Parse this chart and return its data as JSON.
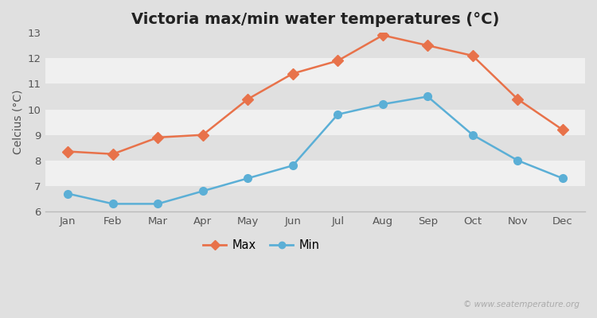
{
  "title": "Victoria max/min water temperatures (°C)",
  "xlabel": "",
  "ylabel": "Celcius (°C)",
  "months": [
    "Jan",
    "Feb",
    "Mar",
    "Apr",
    "May",
    "Jun",
    "Jul",
    "Aug",
    "Sep",
    "Oct",
    "Nov",
    "Dec"
  ],
  "max_temps": [
    8.35,
    8.25,
    8.9,
    9.0,
    10.4,
    11.4,
    11.9,
    12.9,
    12.5,
    12.1,
    10.4,
    9.2
  ],
  "min_temps": [
    6.7,
    6.3,
    6.3,
    6.8,
    7.3,
    7.8,
    9.8,
    10.2,
    10.5,
    9.0,
    8.0,
    7.3
  ],
  "max_color": "#e8724a",
  "min_color": "#5bafd6",
  "fig_bg_color": "#e0e0e0",
  "plot_bg_color": "#ffffff",
  "band_color_light": "#f0f0f0",
  "band_color_dark": "#e0e0e0",
  "ylim": [
    6,
    13
  ],
  "yticks": [
    6,
    7,
    8,
    9,
    10,
    11,
    12,
    13
  ],
  "legend_labels": [
    "Max",
    "Min"
  ],
  "watermark": "© www.seatemperature.org",
  "title_fontsize": 14,
  "axis_label_fontsize": 10,
  "tick_fontsize": 9.5,
  "legend_fontsize": 10.5
}
